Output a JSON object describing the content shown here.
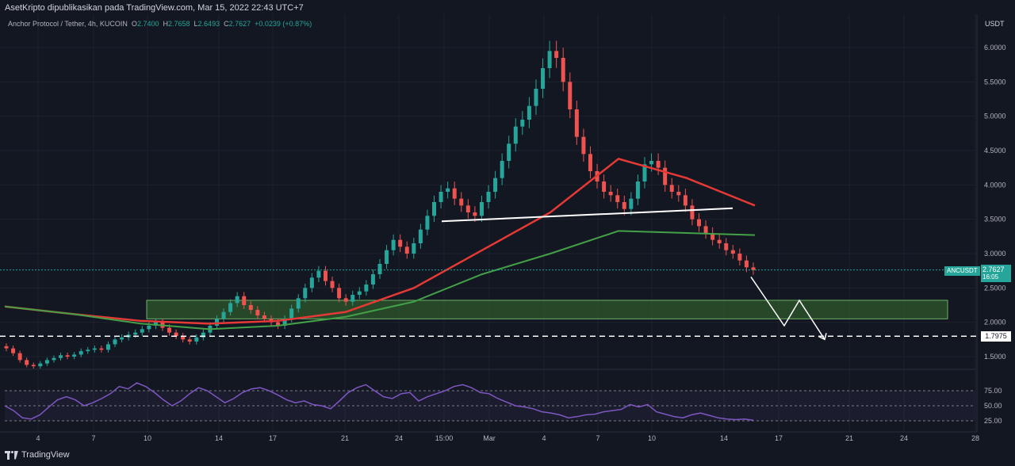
{
  "header": {
    "publisher_line": "AsetKripto dipublikasikan pada TradingView.com, Mar 15, 2022 22:43 UTC+7"
  },
  "symbol": {
    "name": "Anchor Protocol / Tether, 4h, KUCOIN",
    "o_label": "O",
    "o_value": "2.7400",
    "h_label": "H",
    "h_value": "2.7658",
    "l_label": "L",
    "l_value": "2.6493",
    "c_label": "C",
    "c_value": "2.7627",
    "change": "+0.0239 (+0.87%)"
  },
  "price_axis": {
    "unit": "USDT",
    "ticks": [
      "6.0000",
      "5.5000",
      "5.0000",
      "4.5000",
      "4.0000",
      "3.5000",
      "3.0000",
      "2.5000",
      "2.0000",
      "1.5000"
    ],
    "current_symbol": "ANCUSDT",
    "current_price": "2.7627",
    "countdown": "16:05",
    "level_price": "1.7975"
  },
  "rsi_axis": {
    "ticks": [
      "75.00",
      "50.00",
      "25.00"
    ]
  },
  "time_axis": {
    "ticks": [
      "4",
      "7",
      "10",
      "14",
      "17",
      "21",
      "24",
      "15:00",
      "Mar",
      "4",
      "7",
      "10",
      "14",
      "17",
      "21",
      "24",
      "28"
    ]
  },
  "footer": {
    "brand": "TradingView"
  },
  "colors": {
    "background": "#131722",
    "up": "#26a69a",
    "down": "#ef5350",
    "ma_fast": "#43a047",
    "ma_slow": "#e53935",
    "rsi": "#7e57c2",
    "zone": "#2e5a2b"
  },
  "chart_data": {
    "type": "candlestick",
    "title": "Anchor Protocol / Tether, 4h, KUCOIN",
    "ylabel": "USDT",
    "ylim": [
      1.3,
      6.3
    ],
    "grid": true,
    "closes": [
      1.62,
      1.55,
      1.45,
      1.38,
      1.36,
      1.4,
      1.45,
      1.48,
      1.52,
      1.5,
      1.53,
      1.58,
      1.6,
      1.62,
      1.6,
      1.68,
      1.75,
      1.78,
      1.82,
      1.85,
      1.9,
      1.95,
      2.0,
      1.92,
      1.85,
      1.8,
      1.75,
      1.72,
      1.78,
      1.85,
      1.95,
      2.05,
      2.15,
      2.28,
      2.38,
      2.25,
      2.18,
      2.1,
      2.05,
      2.0,
      1.95,
      2.05,
      2.2,
      2.35,
      2.5,
      2.65,
      2.75,
      2.6,
      2.5,
      2.35,
      2.3,
      2.4,
      2.45,
      2.55,
      2.7,
      2.85,
      3.05,
      3.2,
      3.1,
      3.0,
      3.15,
      3.35,
      3.55,
      3.75,
      3.9,
      3.95,
      3.8,
      3.7,
      3.6,
      3.55,
      3.75,
      3.9,
      4.1,
      4.35,
      4.6,
      4.85,
      4.95,
      5.15,
      5.4,
      5.7,
      5.95,
      5.85,
      5.5,
      5.1,
      4.7,
      4.45,
      4.2,
      4.05,
      3.9,
      3.85,
      3.75,
      3.65,
      3.8,
      4.05,
      4.3,
      4.35,
      4.25,
      4.0,
      3.9,
      3.85,
      3.7,
      3.5,
      3.4,
      3.3,
      3.2,
      3.15,
      3.05,
      3.0,
      2.9,
      2.8,
      2.76
    ],
    "series": [
      {
        "name": "",
        "values": [
          2.23,
          2.12,
          2.02,
          1.98,
          2.02,
          2.15,
          2.5,
          3.05,
          3.6,
          4.38,
          4.1,
          3.7
        ]
      },
      {
        "name": "",
        "values": [
          2.23,
          2.12,
          1.98,
          1.9,
          1.95,
          2.08,
          2.3,
          2.7,
          3.0,
          3.33,
          3.3,
          3.27
        ]
      }
    ],
    "rsi": {
      "ylim": [
        0,
        100
      ],
      "levels": [
        75,
        50,
        25
      ],
      "values": [
        50,
        42,
        30,
        28,
        35,
        48,
        60,
        65,
        60,
        50,
        55,
        62,
        70,
        82,
        78,
        88,
        82,
        72,
        60,
        50,
        58,
        70,
        80,
        75,
        65,
        55,
        62,
        72,
        78,
        80,
        75,
        68,
        60,
        55,
        58,
        52,
        50,
        45,
        58,
        72,
        80,
        85,
        75,
        65,
        62,
        70,
        72,
        58,
        65,
        70,
        75,
        82,
        85,
        80,
        72,
        70,
        62,
        56,
        50,
        48,
        45,
        40,
        38,
        35,
        30,
        32,
        35,
        36,
        40,
        42,
        44,
        52,
        48,
        52,
        40,
        36,
        32,
        30,
        35,
        38,
        34,
        30,
        28,
        27,
        28,
        26
      ]
    },
    "annotations": {
      "neckline": [
        3.47,
        3.66
      ],
      "support_zone": [
        2.05,
        2.32
      ],
      "target_level": 1.7975,
      "projection": [
        2.66,
        1.95,
        2.32,
        1.75
      ]
    }
  }
}
